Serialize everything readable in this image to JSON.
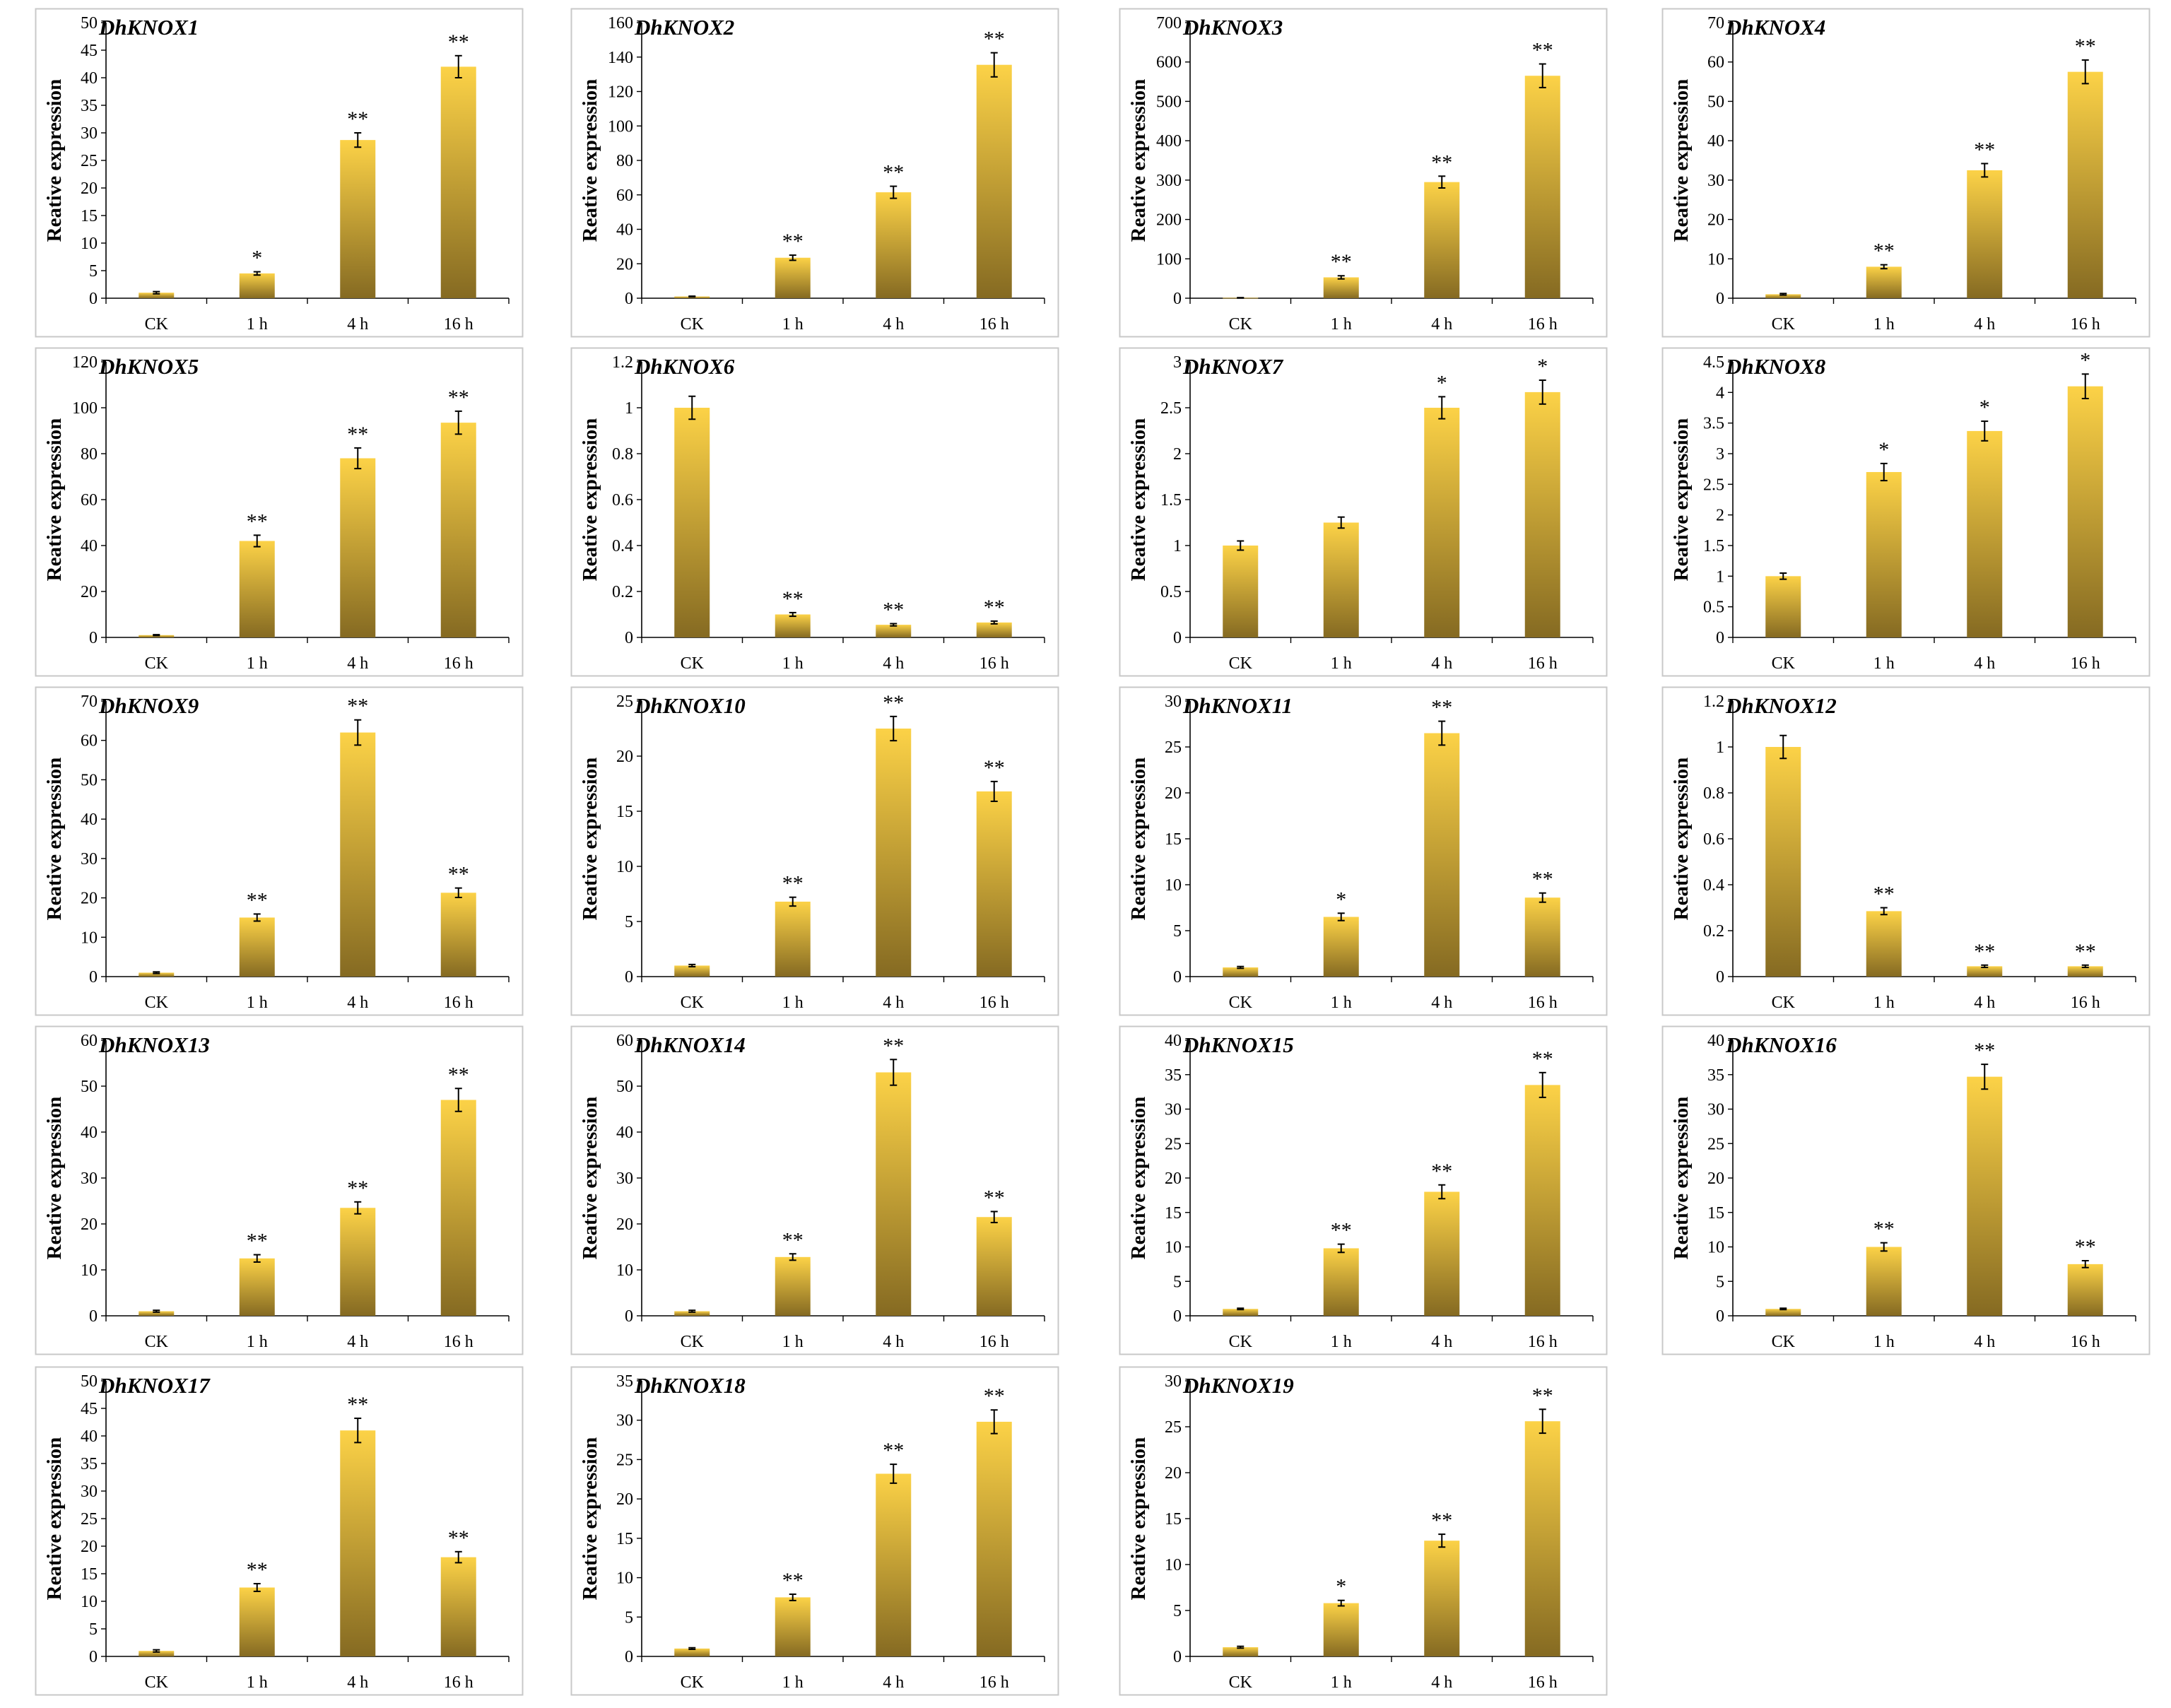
{
  "figure": {
    "colors": {
      "bar_top": "#fcd247",
      "bar_bottom": "#856a22",
      "frame": "#c8c8c8",
      "axis": "#000000"
    }
  },
  "chart_data": [
    {
      "type": "bar",
      "title": "DhKNOX1",
      "ylabel": "Reative expression",
      "categories": [
        "CK",
        "1 h",
        "4 h",
        "16 h"
      ],
      "values": [
        1,
        4.5,
        28.7,
        42
      ],
      "errors": [
        0.2,
        0.3,
        1.3,
        2
      ],
      "significance": [
        "",
        "*",
        "**",
        "**"
      ],
      "ylim": [
        0,
        50
      ],
      "yticks": [
        "0",
        "5",
        "10",
        "15",
        "20",
        "25",
        "30",
        "35",
        "40",
        "45",
        "50"
      ]
    },
    {
      "type": "bar",
      "title": "DhKNOX2",
      "ylabel": "Reative expression",
      "categories": [
        "CK",
        "1 h",
        "4 h",
        "16 h"
      ],
      "values": [
        1,
        23.5,
        61.5,
        135.5
      ],
      "errors": [
        0.2,
        1.5,
        3.5,
        7
      ],
      "significance": [
        "",
        "**",
        "**",
        "**"
      ],
      "ylim": [
        0,
        160
      ],
      "yticks": [
        "0",
        "20",
        "40",
        "60",
        "80",
        "100",
        "120",
        "140",
        "160"
      ]
    },
    {
      "type": "bar",
      "title": "DhKNOX3",
      "ylabel": "Reative expression",
      "categories": [
        "CK",
        "1 h",
        "4 h",
        "16 h"
      ],
      "values": [
        1,
        53,
        295,
        565
      ],
      "errors": [
        0.5,
        4,
        15,
        30
      ],
      "significance": [
        "",
        "**",
        "**",
        "**"
      ],
      "ylim": [
        0,
        700
      ],
      "yticks": [
        "0",
        "100",
        "200",
        "300",
        "400",
        "500",
        "600",
        "700"
      ]
    },
    {
      "type": "bar",
      "title": "DhKNOX4",
      "ylabel": "Reative expression",
      "categories": [
        "CK",
        "1 h",
        "4 h",
        "16 h"
      ],
      "values": [
        1,
        8,
        32.5,
        57.5
      ],
      "errors": [
        0.2,
        0.5,
        1.7,
        3
      ],
      "significance": [
        "",
        "**",
        "**",
        "**"
      ],
      "ylim": [
        0,
        70
      ],
      "yticks": [
        "0",
        "10",
        "20",
        "30",
        "40",
        "50",
        "60",
        "70"
      ]
    },
    {
      "type": "bar",
      "title": "DhKNOX5",
      "ylabel": "Reative expression",
      "categories": [
        "CK",
        "1 h",
        "4 h",
        "16 h"
      ],
      "values": [
        1,
        42,
        78,
        93.5
      ],
      "errors": [
        0.2,
        2.5,
        4.5,
        5
      ],
      "significance": [
        "",
        "**",
        "**",
        "**"
      ],
      "ylim": [
        0,
        120
      ],
      "yticks": [
        "0",
        "20",
        "40",
        "60",
        "80",
        "100",
        "120"
      ]
    },
    {
      "type": "bar",
      "title": "DhKNOX6",
      "ylabel": "Reative expression",
      "categories": [
        "CK",
        "1 h",
        "4 h",
        "16 h"
      ],
      "values": [
        1,
        0.1,
        0.055,
        0.065
      ],
      "errors": [
        0.05,
        0.008,
        0.005,
        0.006
      ],
      "significance": [
        "",
        "**",
        "**",
        "**"
      ],
      "ylim": [
        0,
        1.2
      ],
      "yticks": [
        "0",
        "0.2",
        "0.4",
        "0.6",
        "0.8",
        "1",
        "1.2"
      ]
    },
    {
      "type": "bar",
      "title": "DhKNOX7",
      "ylabel": "Reative expression",
      "categories": [
        "CK",
        "1 h",
        "4 h",
        "16 h"
      ],
      "values": [
        1,
        1.25,
        2.5,
        2.67
      ],
      "errors": [
        0.05,
        0.06,
        0.12,
        0.13
      ],
      "significance": [
        "",
        "",
        "*",
        "*"
      ],
      "ylim": [
        0,
        3
      ],
      "yticks": [
        "0",
        "0.5",
        "1",
        "1.5",
        "2",
        "2.5",
        "3"
      ]
    },
    {
      "type": "bar",
      "title": "DhKNOX8",
      "ylabel": "Reative expression",
      "categories": [
        "CK",
        "1 h",
        "4 h",
        "16 h"
      ],
      "values": [
        1,
        2.7,
        3.37,
        4.1
      ],
      "errors": [
        0.05,
        0.14,
        0.16,
        0.2
      ],
      "significance": [
        "",
        "*",
        "*",
        "*"
      ],
      "ylim": [
        0,
        4.5
      ],
      "yticks": [
        "0",
        "0.5",
        "1",
        "1.5",
        "2",
        "2.5",
        "3",
        "3.5",
        "4",
        "4.5"
      ]
    },
    {
      "type": "bar",
      "title": "DhKNOX9",
      "ylabel": "Reative expression",
      "categories": [
        "CK",
        "1 h",
        "4 h",
        "16 h"
      ],
      "values": [
        1,
        15,
        62,
        21.3
      ],
      "errors": [
        0.2,
        0.9,
        3.2,
        1.2
      ],
      "significance": [
        "",
        "**",
        "**",
        "**"
      ],
      "ylim": [
        0,
        70
      ],
      "yticks": [
        "0",
        "10",
        "20",
        "30",
        "40",
        "50",
        "60",
        "70"
      ]
    },
    {
      "type": "bar",
      "title": "DhKNOX10",
      "ylabel": "Reative expression",
      "categories": [
        "CK",
        "1 h",
        "4 h",
        "16 h"
      ],
      "values": [
        1,
        6.8,
        22.5,
        16.8
      ],
      "errors": [
        0.1,
        0.4,
        1.1,
        0.9
      ],
      "significance": [
        "",
        "**",
        "**",
        "**"
      ],
      "ylim": [
        0,
        25
      ],
      "yticks": [
        "0",
        "5",
        "10",
        "15",
        "20",
        "25"
      ]
    },
    {
      "type": "bar",
      "title": "DhKNOX11",
      "ylabel": "Reative expression",
      "categories": [
        "CK",
        "1 h",
        "4 h",
        "16 h"
      ],
      "values": [
        1,
        6.5,
        26.5,
        8.6
      ],
      "errors": [
        0.1,
        0.4,
        1.3,
        0.5
      ],
      "significance": [
        "",
        "*",
        "**",
        "**"
      ],
      "ylim": [
        0,
        30
      ],
      "yticks": [
        "0",
        "5",
        "10",
        "15",
        "20",
        "25",
        "30"
      ]
    },
    {
      "type": "bar",
      "title": "DhKNOX12",
      "ylabel": "Reative expression",
      "categories": [
        "CK",
        "1 h",
        "4 h",
        "16 h"
      ],
      "values": [
        1,
        0.285,
        0.045,
        0.045
      ],
      "errors": [
        0.05,
        0.015,
        0.005,
        0.005
      ],
      "significance": [
        "",
        "**",
        "**",
        "**"
      ],
      "ylim": [
        0,
        1.2
      ],
      "yticks": [
        "0",
        "0.2",
        "0.4",
        "0.6",
        "0.8",
        "1",
        "1.2"
      ]
    },
    {
      "type": "bar",
      "title": "DhKNOX13",
      "ylabel": "Reative expression",
      "categories": [
        "CK",
        "1 h",
        "4 h",
        "16 h"
      ],
      "values": [
        1,
        12.5,
        23.5,
        47
      ],
      "errors": [
        0.2,
        0.8,
        1.3,
        2.5
      ],
      "significance": [
        "",
        "**",
        "**",
        "**"
      ],
      "ylim": [
        0,
        60
      ],
      "yticks": [
        "0",
        "10",
        "20",
        "30",
        "40",
        "50",
        "60"
      ]
    },
    {
      "type": "bar",
      "title": "DhKNOX14",
      "ylabel": "Reative expression",
      "categories": [
        "CK",
        "1 h",
        "4 h",
        "16 h"
      ],
      "values": [
        1,
        12.8,
        53,
        21.5
      ],
      "errors": [
        0.2,
        0.7,
        2.8,
        1.2
      ],
      "significance": [
        "",
        "**",
        "**",
        "**"
      ],
      "ylim": [
        0,
        60
      ],
      "yticks": [
        "0",
        "10",
        "20",
        "30",
        "40",
        "50",
        "60"
      ]
    },
    {
      "type": "bar",
      "title": "DhKNOX15",
      "ylabel": "Reative expression",
      "categories": [
        "CK",
        "1 h",
        "4 h",
        "16 h"
      ],
      "values": [
        1,
        9.8,
        18,
        33.5
      ],
      "errors": [
        0.1,
        0.6,
        1,
        1.8
      ],
      "significance": [
        "",
        "**",
        "**",
        "**"
      ],
      "ylim": [
        0,
        40
      ],
      "yticks": [
        "0",
        "5",
        "10",
        "15",
        "20",
        "25",
        "30",
        "35",
        "40"
      ]
    },
    {
      "type": "bar",
      "title": "DhKNOX16",
      "ylabel": "Reative expression",
      "categories": [
        "CK",
        "1 h",
        "4 h",
        "16 h"
      ],
      "values": [
        1,
        10,
        34.7,
        7.5
      ],
      "errors": [
        0.1,
        0.6,
        1.8,
        0.5
      ],
      "significance": [
        "",
        "**",
        "**",
        "**"
      ],
      "ylim": [
        0,
        40
      ],
      "yticks": [
        "0",
        "5",
        "10",
        "15",
        "20",
        "25",
        "30",
        "35",
        "40"
      ]
    },
    {
      "type": "bar",
      "title": "DhKNOX17",
      "ylabel": "Reative expression",
      "categories": [
        "CK",
        "1 h",
        "4 h",
        "16 h"
      ],
      "values": [
        1,
        12.5,
        41,
        18
      ],
      "errors": [
        0.2,
        0.7,
        2.2,
        1
      ],
      "significance": [
        "",
        "**",
        "**",
        "**"
      ],
      "ylim": [
        0,
        50
      ],
      "yticks": [
        "0",
        "5",
        "10",
        "15",
        "20",
        "25",
        "30",
        "35",
        "40",
        "45",
        "50"
      ]
    },
    {
      "type": "bar",
      "title": "DhKNOX18",
      "ylabel": "Reative expression",
      "categories": [
        "CK",
        "1 h",
        "4 h",
        "16 h"
      ],
      "values": [
        1,
        7.5,
        23.2,
        29.8
      ],
      "errors": [
        0.1,
        0.4,
        1.2,
        1.5
      ],
      "significance": [
        "",
        "**",
        "**",
        "**"
      ],
      "ylim": [
        0,
        35
      ],
      "yticks": [
        "0",
        "5",
        "10",
        "15",
        "20",
        "25",
        "30",
        "35"
      ]
    },
    {
      "type": "bar",
      "title": "DhKNOX19",
      "ylabel": "Reative expression",
      "categories": [
        "CK",
        "1 h",
        "4 h",
        "16 h"
      ],
      "values": [
        1,
        5.8,
        12.6,
        25.6
      ],
      "errors": [
        0.1,
        0.3,
        0.7,
        1.3
      ],
      "significance": [
        "",
        "*",
        "**",
        "**"
      ],
      "ylim": [
        0,
        30
      ],
      "yticks": [
        "0",
        "5",
        "10",
        "15",
        "20",
        "25",
        "30"
      ]
    }
  ]
}
